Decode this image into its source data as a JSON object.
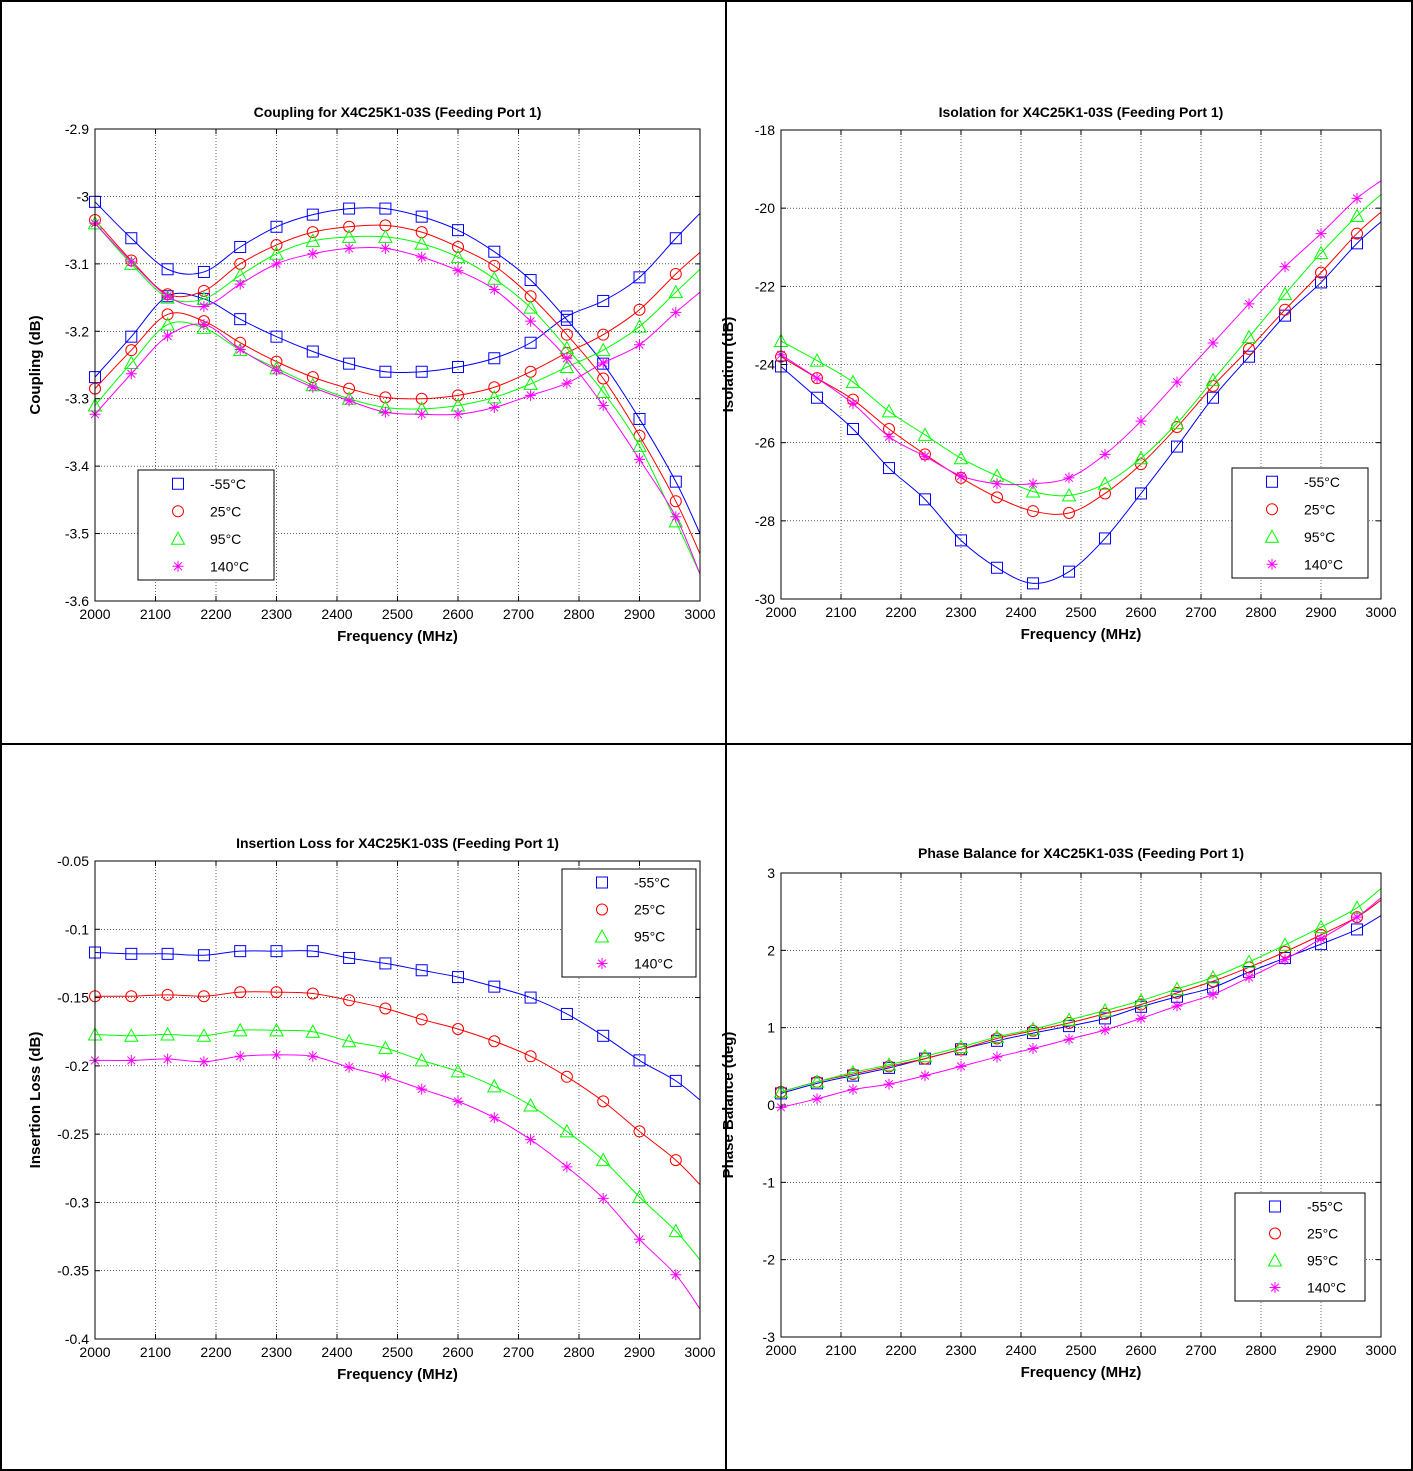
{
  "colors": {
    "-55": "#0000ff",
    "25": "#ff0000",
    "95": "#00ff00",
    "140": "#ff00ff"
  },
  "legend_labels": [
    "-55°C",
    "25°C",
    "95°C",
    "140°C"
  ],
  "marker_names": [
    "square",
    "circle",
    "triangle",
    "asterisk"
  ],
  "chart_data": [
    {
      "type": "line",
      "title": "Coupling for X4C25K1-03S (Feeding Port 1)",
      "xlabel": "Frequency (MHz)",
      "ylabel": "Coupling (dB)",
      "xlim": [
        2000,
        3000
      ],
      "ylim": [
        -3.6,
        -2.9
      ],
      "xticks": [
        2000,
        2100,
        2200,
        2300,
        2400,
        2500,
        2600,
        2700,
        2800,
        2900,
        3000
      ],
      "yticks": [
        -3.6,
        -3.5,
        -3.4,
        -3.3,
        -3.2,
        -3.1,
        -3,
        -2.9
      ],
      "grid": true,
      "legend_position": "bottom-left",
      "x": [
        2000,
        2060,
        2120,
        2180,
        2240,
        2300,
        2360,
        2420,
        2480,
        2540,
        2600,
        2660,
        2720,
        2780,
        2840,
        2900,
        2960,
        3000
      ],
      "series": [
        {
          "name": "-55°C",
          "values": [
            -3.008,
            -3.062,
            -3.108,
            -3.112,
            -3.075,
            -3.045,
            -3.027,
            -3.018,
            -3.018,
            -3.03,
            -3.05,
            -3.082,
            -3.124,
            -3.183,
            -3.248,
            -3.33,
            -3.423,
            -3.5
          ],
          "values2": [
            -3.268,
            -3.208,
            -3.148,
            -3.152,
            -3.182,
            -3.208,
            -3.23,
            -3.248,
            -3.26,
            -3.26,
            -3.253,
            -3.24,
            -3.217,
            -3.178,
            -3.155,
            -3.12,
            -3.062,
            -3.025
          ]
        },
        {
          "name": "25°C",
          "values": [
            -3.035,
            -3.095,
            -3.145,
            -3.14,
            -3.1,
            -3.072,
            -3.053,
            -3.045,
            -3.043,
            -3.053,
            -3.075,
            -3.103,
            -3.148,
            -3.205,
            -3.27,
            -3.355,
            -3.452,
            -3.53
          ],
          "values2": [
            -3.285,
            -3.228,
            -3.175,
            -3.185,
            -3.217,
            -3.245,
            -3.268,
            -3.285,
            -3.298,
            -3.3,
            -3.295,
            -3.283,
            -3.26,
            -3.232,
            -3.205,
            -3.168,
            -3.115,
            -3.083
          ]
        },
        {
          "name": "95°C",
          "values": [
            -3.04,
            -3.1,
            -3.15,
            -3.152,
            -3.117,
            -3.085,
            -3.066,
            -3.06,
            -3.06,
            -3.07,
            -3.09,
            -3.122,
            -3.165,
            -3.225,
            -3.29,
            -3.37,
            -3.482,
            -3.56
          ],
          "values2": [
            -3.31,
            -3.247,
            -3.19,
            -3.195,
            -3.228,
            -3.255,
            -3.28,
            -3.3,
            -3.313,
            -3.315,
            -3.31,
            -3.298,
            -3.278,
            -3.253,
            -3.228,
            -3.193,
            -3.142,
            -3.108
          ]
        },
        {
          "name": "140°C",
          "values": [
            -3.04,
            -3.097,
            -3.148,
            -3.163,
            -3.13,
            -3.1,
            -3.085,
            -3.077,
            -3.077,
            -3.09,
            -3.11,
            -3.138,
            -3.185,
            -3.24,
            -3.31,
            -3.39,
            -3.475,
            -3.56
          ],
          "values2": [
            -3.323,
            -3.263,
            -3.207,
            -3.19,
            -3.227,
            -3.258,
            -3.283,
            -3.303,
            -3.32,
            -3.323,
            -3.323,
            -3.313,
            -3.295,
            -3.277,
            -3.247,
            -3.22,
            -3.172,
            -3.142
          ]
        }
      ]
    },
    {
      "type": "line",
      "title": "Isolation for X4C25K1-03S (Feeding Port 1)",
      "xlabel": "Frequency (MHz)",
      "ylabel": "Isolation (dB)",
      "xlim": [
        2000,
        3000
      ],
      "ylim": [
        -30,
        -18
      ],
      "xticks": [
        2000,
        2100,
        2200,
        2300,
        2400,
        2500,
        2600,
        2700,
        2800,
        2900,
        3000
      ],
      "yticks": [
        -30,
        -28,
        -26,
        -24,
        -22,
        -20,
        -18
      ],
      "grid": true,
      "legend_position": "bottom-right",
      "x": [
        2000,
        2060,
        2120,
        2180,
        2240,
        2300,
        2360,
        2420,
        2480,
        2540,
        2600,
        2660,
        2720,
        2780,
        2840,
        2900,
        2960,
        3000
      ],
      "series": [
        {
          "name": "-55°C",
          "values": [
            -24.05,
            -24.85,
            -25.65,
            -26.65,
            -27.45,
            -28.5,
            -29.2,
            -29.6,
            -29.3,
            -28.45,
            -27.3,
            -26.1,
            -24.85,
            -23.8,
            -22.75,
            -21.9,
            -20.9,
            -20.35
          ]
        },
        {
          "name": "25°C",
          "values": [
            -23.8,
            -24.35,
            -24.9,
            -25.65,
            -26.3,
            -26.9,
            -27.4,
            -27.75,
            -27.8,
            -27.3,
            -26.55,
            -25.6,
            -24.55,
            -23.6,
            -22.6,
            -21.65,
            -20.65,
            -20.1
          ]
        },
        {
          "name": "95°C",
          "values": [
            -23.4,
            -23.9,
            -24.45,
            -25.2,
            -25.8,
            -26.4,
            -26.85,
            -27.25,
            -27.35,
            -27.05,
            -26.4,
            -25.5,
            -24.4,
            -23.3,
            -22.2,
            -21.15,
            -20.2,
            -19.65
          ]
        },
        {
          "name": "140°C",
          "values": [
            -23.75,
            -24.35,
            -25.0,
            -25.85,
            -26.35,
            -26.85,
            -27.05,
            -27.05,
            -26.9,
            -26.3,
            -25.45,
            -24.45,
            -23.45,
            -22.45,
            -21.5,
            -20.65,
            -19.75,
            -19.3
          ]
        }
      ]
    },
    {
      "type": "line",
      "title": "Insertion Loss for X4C25K1-03S (Feeding Port 1)",
      "xlabel": "Frequency (MHz)",
      "ylabel": "Insertion Loss (dB)",
      "xlim": [
        2000,
        3000
      ],
      "ylim": [
        -0.4,
        -0.05
      ],
      "xticks": [
        2000,
        2100,
        2200,
        2300,
        2400,
        2500,
        2600,
        2700,
        2800,
        2900,
        3000
      ],
      "yticks": [
        -0.4,
        -0.35,
        -0.3,
        -0.25,
        -0.2,
        -0.15,
        -0.1,
        -0.05
      ],
      "grid": true,
      "legend_position": "top-right",
      "x": [
        2000,
        2060,
        2120,
        2180,
        2240,
        2300,
        2360,
        2420,
        2480,
        2540,
        2600,
        2660,
        2720,
        2780,
        2840,
        2900,
        2960,
        3000
      ],
      "series": [
        {
          "name": "-55°C",
          "values": [
            -0.117,
            -0.118,
            -0.118,
            -0.119,
            -0.116,
            -0.116,
            -0.116,
            -0.121,
            -0.125,
            -0.13,
            -0.135,
            -0.142,
            -0.15,
            -0.162,
            -0.178,
            -0.196,
            -0.211,
            -0.225
          ]
        },
        {
          "name": "25°C",
          "values": [
            -0.149,
            -0.149,
            -0.148,
            -0.149,
            -0.146,
            -0.146,
            -0.147,
            -0.152,
            -0.158,
            -0.166,
            -0.173,
            -0.182,
            -0.193,
            -0.208,
            -0.226,
            -0.248,
            -0.269,
            -0.287
          ]
        },
        {
          "name": "95°C",
          "values": [
            -0.177,
            -0.178,
            -0.177,
            -0.178,
            -0.174,
            -0.174,
            -0.175,
            -0.182,
            -0.187,
            -0.196,
            -0.204,
            -0.215,
            -0.229,
            -0.248,
            -0.269,
            -0.296,
            -0.321,
            -0.342
          ]
        },
        {
          "name": "140°C",
          "values": [
            -0.196,
            -0.196,
            -0.195,
            -0.197,
            -0.193,
            -0.192,
            -0.193,
            -0.201,
            -0.208,
            -0.217,
            -0.226,
            -0.238,
            -0.254,
            -0.274,
            -0.297,
            -0.327,
            -0.353,
            -0.378
          ]
        }
      ]
    },
    {
      "type": "line",
      "title": "Phase Balance for X4C25K1-03S (Feeding Port 1)",
      "xlabel": "Frequency (MHz)",
      "ylabel": "Phase Balance (deg)",
      "xlim": [
        2000,
        3000
      ],
      "ylim": [
        -3,
        3
      ],
      "xticks": [
        2000,
        2100,
        2200,
        2300,
        2400,
        2500,
        2600,
        2700,
        2800,
        2900,
        3000
      ],
      "yticks": [
        -3,
        -2,
        -1,
        0,
        1,
        2,
        3
      ],
      "grid": true,
      "legend_position": "bottom-right",
      "x": [
        2000,
        2060,
        2120,
        2180,
        2240,
        2300,
        2360,
        2420,
        2480,
        2540,
        2600,
        2660,
        2720,
        2780,
        2840,
        2900,
        2960,
        3000
      ],
      "series": [
        {
          "name": "-55°C",
          "values": [
            0.15,
            0.28,
            0.38,
            0.48,
            0.6,
            0.72,
            0.83,
            0.93,
            1.02,
            1.12,
            1.27,
            1.4,
            1.52,
            1.72,
            1.9,
            2.08,
            2.27,
            2.45
          ]
        },
        {
          "name": "25°C",
          "values": [
            0.17,
            0.3,
            0.4,
            0.5,
            0.6,
            0.72,
            0.86,
            0.96,
            1.06,
            1.18,
            1.3,
            1.45,
            1.6,
            1.78,
            1.98,
            2.2,
            2.43,
            2.65
          ]
        },
        {
          "name": "95°C",
          "values": [
            0.17,
            0.3,
            0.42,
            0.52,
            0.63,
            0.75,
            0.88,
            0.98,
            1.1,
            1.22,
            1.35,
            1.5,
            1.65,
            1.85,
            2.07,
            2.3,
            2.55,
            2.8
          ]
        },
        {
          "name": "140°C",
          "values": [
            -0.03,
            0.08,
            0.2,
            0.27,
            0.38,
            0.5,
            0.62,
            0.73,
            0.85,
            0.97,
            1.12,
            1.28,
            1.43,
            1.65,
            1.88,
            2.15,
            2.43,
            2.68
          ]
        }
      ]
    }
  ]
}
